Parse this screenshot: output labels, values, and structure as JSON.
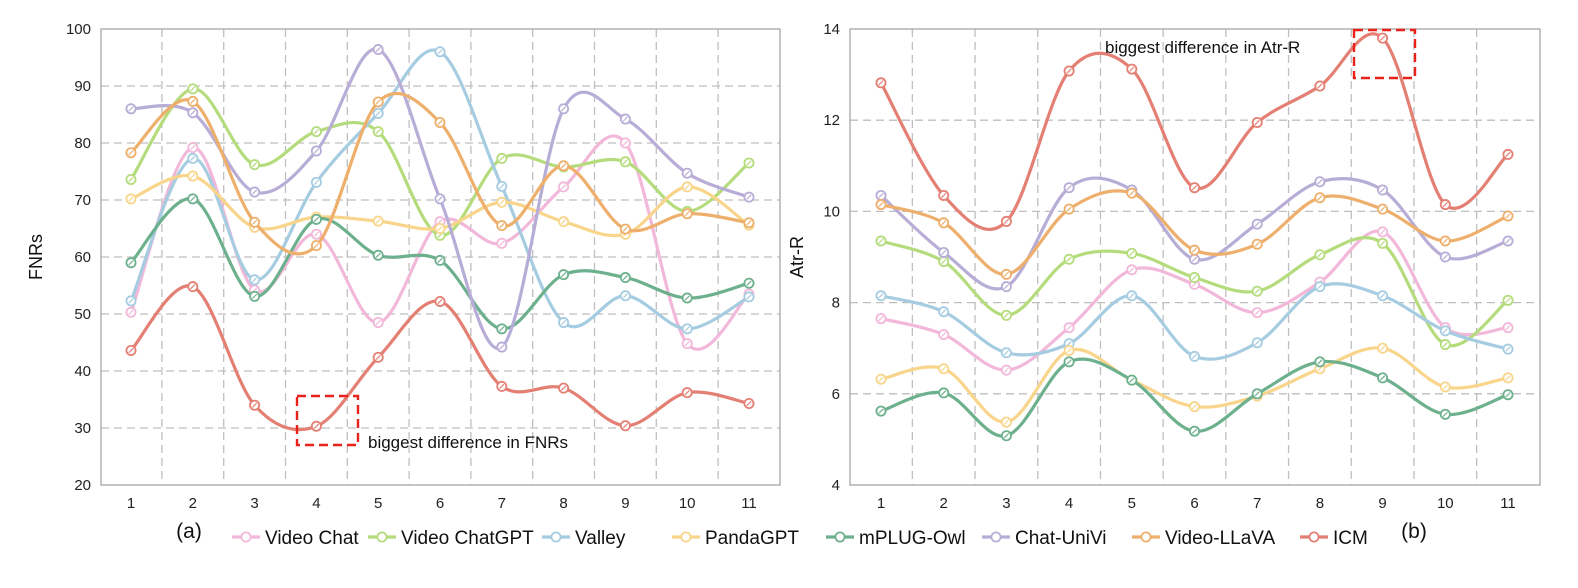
{
  "chart_data": [
    {
      "type": "line",
      "subplot_label": "(a)",
      "xlabel": "",
      "ylabel": "FNRs",
      "ylim": [
        20,
        100
      ],
      "yticks": [
        20,
        30,
        40,
        50,
        60,
        70,
        80,
        90,
        100
      ],
      "categories": [
        "1",
        "2",
        "3",
        "4",
        "5",
        "6",
        "7",
        "8",
        "9",
        "10",
        "11"
      ],
      "grid": true,
      "annotation": {
        "text": "biggest difference in FNRs",
        "x": "4",
        "y": 30.3
      },
      "series": [
        {
          "name": "Video Chat",
          "color": "#F2B8D9",
          "values": [
            50.3,
            79.2,
            54.2,
            64.0,
            48.5,
            66.2,
            62.4,
            72.3,
            80.0,
            44.8,
            53.5
          ]
        },
        {
          "name": "Video ChatGPT",
          "color": "#B5DC7C",
          "values": [
            73.6,
            89.5,
            76.2,
            82.0,
            82.0,
            63.8,
            77.3,
            75.8,
            76.7,
            68.0,
            76.5
          ]
        },
        {
          "name": "Valley",
          "color": "#A5CCE0",
          "values": [
            52.3,
            77.3,
            56.0,
            73.1,
            85.2,
            96.0,
            72.4,
            48.5,
            53.2,
            47.4,
            53.0
          ]
        },
        {
          "name": "PandaGPT",
          "color": "#F8D58A",
          "values": [
            70.2,
            74.2,
            65.2,
            67.0,
            66.3,
            65.0,
            69.6,
            66.2,
            64.0,
            72.3,
            65.6
          ]
        },
        {
          "name": "mPLUG-Owl",
          "color": "#6DB08D",
          "values": [
            59.0,
            70.2,
            53.1,
            66.6,
            60.3,
            59.4,
            47.4,
            56.9,
            56.4,
            52.8,
            55.4
          ]
        },
        {
          "name": "Chat-UniVi",
          "color": "#B7ADD6",
          "values": [
            86.0,
            85.3,
            71.4,
            78.6,
            96.4,
            70.2,
            44.2,
            86.0,
            84.2,
            74.7,
            70.5
          ]
        },
        {
          "name": "Video-LLaVA",
          "color": "#EDAF6B",
          "values": [
            78.3,
            87.3,
            66.1,
            62.0,
            87.2,
            83.6,
            65.5,
            76.0,
            64.9,
            67.6,
            66.0
          ]
        },
        {
          "name": "ICM",
          "color": "#E47F73",
          "values": [
            43.6,
            54.8,
            34.0,
            30.3,
            42.4,
            52.2,
            37.3,
            37.0,
            30.4,
            36.2,
            34.3
          ]
        }
      ]
    },
    {
      "type": "line",
      "subplot_label": "(b)",
      "xlabel": "",
      "ylabel": "Atr-R",
      "ylim": [
        4,
        14
      ],
      "yticks": [
        4,
        6,
        8,
        10,
        12,
        14
      ],
      "categories": [
        "1",
        "2",
        "3",
        "4",
        "5",
        "6",
        "7",
        "8",
        "9",
        "10",
        "11"
      ],
      "grid": true,
      "annotation": {
        "text": "biggest difference in Atr-R",
        "x": "9",
        "y": 13.8
      },
      "series": [
        {
          "name": "Video Chat",
          "color": "#F2B8D9",
          "values": [
            7.65,
            7.3,
            6.52,
            7.45,
            8.72,
            8.4,
            7.78,
            8.45,
            9.55,
            7.45,
            7.45
          ]
        },
        {
          "name": "Video ChatGPT",
          "color": "#B5DC7C",
          "values": [
            9.35,
            8.9,
            7.72,
            8.95,
            9.08,
            8.55,
            8.25,
            9.05,
            9.3,
            7.08,
            8.05
          ]
        },
        {
          "name": "Valley",
          "color": "#A5CCE0",
          "values": [
            8.15,
            7.8,
            6.9,
            7.1,
            8.15,
            6.82,
            7.12,
            8.35,
            8.15,
            7.38,
            6.98
          ]
        },
        {
          "name": "PandaGPT",
          "color": "#F8D58A",
          "values": [
            6.32,
            6.55,
            5.38,
            6.95,
            6.3,
            5.72,
            5.95,
            6.55,
            7.0,
            6.15,
            6.35
          ]
        },
        {
          "name": "mPLUG-Owl",
          "color": "#6DB08D",
          "values": [
            5.62,
            6.02,
            5.08,
            6.7,
            6.3,
            5.18,
            6.0,
            6.7,
            6.35,
            5.55,
            5.98
          ]
        },
        {
          "name": "Chat-UniVi",
          "color": "#B7ADD6",
          "values": [
            10.35,
            9.1,
            8.35,
            10.52,
            10.47,
            8.95,
            9.72,
            10.65,
            10.47,
            9.0,
            9.35
          ]
        },
        {
          "name": "Video-LLaVA",
          "color": "#EDAF6B",
          "values": [
            10.15,
            9.75,
            8.62,
            10.05,
            10.4,
            9.15,
            9.28,
            10.3,
            10.05,
            9.35,
            9.9
          ]
        },
        {
          "name": "ICM",
          "color": "#E47F73",
          "values": [
            12.82,
            10.35,
            9.78,
            13.08,
            13.12,
            10.52,
            11.95,
            12.75,
            13.8,
            10.15,
            11.25
          ]
        }
      ]
    }
  ],
  "legend": {
    "placement": "bottom-center",
    "entries": [
      "Video Chat",
      "Video ChatGPT",
      "Valley",
      "PandaGPT",
      "mPLUG-Owl",
      "Chat-UniVi",
      "Video-LLaVA",
      "ICM"
    ]
  }
}
